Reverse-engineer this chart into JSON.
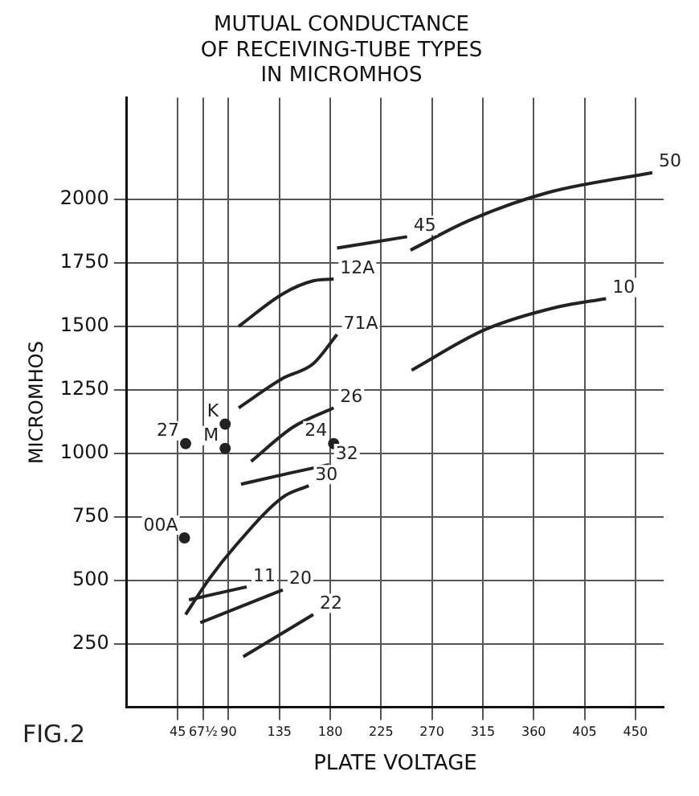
{
  "chart_data": {
    "type": "line",
    "title": [
      "MUTUAL CONDUCTANCE",
      "OF RECEIVING-TUBE TYPES",
      "IN MICROMHOS"
    ],
    "xlabel": "PLATE VOLTAGE",
    "ylabel": "MICROMHOS",
    "annotations": [
      "FIG.2"
    ],
    "xlim": [
      0,
      475
    ],
    "ylim": [
      0,
      2400
    ],
    "xticks": [
      45,
      {
        "value": 67.5,
        "label": "67½"
      },
      90,
      135,
      180,
      225,
      270,
      315,
      360,
      405,
      450
    ],
    "yticks": [
      250,
      500,
      750,
      1000,
      1250,
      1500,
      1750,
      2000
    ],
    "grid": true,
    "legend": false,
    "line_style": "solid",
    "series": [
      {
        "name": "50",
        "marker": "none",
        "color": "#222222",
        "x": [
          251,
          303,
          372,
          465
        ],
        "values": [
          1800,
          1917,
          2026,
          2105
        ]
      },
      {
        "name": "45",
        "marker": "none",
        "color": "#222222",
        "x": [
          186,
          248
        ],
        "values": [
          1808,
          1853
        ]
      },
      {
        "name": "10",
        "marker": "none",
        "color": "#222222",
        "x": [
          252,
          317,
          382,
          424
        ],
        "values": [
          1327,
          1487,
          1577,
          1609
        ]
      },
      {
        "name": "12A",
        "marker": "none",
        "color": "#222222",
        "x": [
          99,
          138,
          165,
          183
        ],
        "values": [
          1500,
          1628,
          1679,
          1686
        ]
      },
      {
        "name": "71A",
        "marker": "none",
        "color": "#222222",
        "x": [
          99,
          138,
          165,
          186
        ],
        "values": [
          1179,
          1295,
          1353,
          1468
        ]
      },
      {
        "name": "26",
        "marker": "none",
        "color": "#222222",
        "x": [
          110,
          147,
          183
        ],
        "values": [
          968,
          1103,
          1179
        ]
      },
      {
        "name": "32",
        "marker": "none",
        "color": "#222222",
        "x": [
          101,
          145,
          179
        ],
        "values": [
          878,
          923,
          955
        ]
      },
      {
        "name": "30",
        "marker": "none",
        "color": "#222222",
        "x": [
          52,
          73,
          96,
          138,
          161
        ],
        "values": [
          365,
          506,
          635,
          827,
          872
        ]
      },
      {
        "name": "11",
        "marker": "none",
        "color": "#222222",
        "x": [
          55,
          106
        ],
        "values": [
          423,
          474
        ]
      },
      {
        "name": "20",
        "marker": "none",
        "color": "#222222",
        "x": [
          65,
          138
        ],
        "values": [
          333,
          462
        ]
      },
      {
        "name": "22",
        "marker": "none",
        "color": "#222222",
        "x": [
          103,
          165
        ],
        "values": [
          199,
          365
        ]
      },
      {
        "name": "27",
        "type": "scatter",
        "marker": "circle",
        "color": "#222222",
        "x": [
          52
        ],
        "values": [
          1038
        ]
      },
      {
        "name": "K",
        "type": "scatter",
        "marker": "circle",
        "color": "#222222",
        "x": [
          87
        ],
        "values": [
          1115
        ]
      },
      {
        "name": "M",
        "type": "scatter",
        "marker": "circle",
        "color": "#222222",
        "x": [
          87
        ],
        "values": [
          1019
        ]
      },
      {
        "name": "24",
        "type": "scatter",
        "marker": "circle",
        "color": "#222222",
        "x": [
          183
        ],
        "values": [
          1038
        ]
      },
      {
        "name": "00A",
        "type": "scatter",
        "marker": "circle",
        "color": "#222222",
        "x": [
          51
        ],
        "values": [
          667
        ]
      }
    ]
  }
}
